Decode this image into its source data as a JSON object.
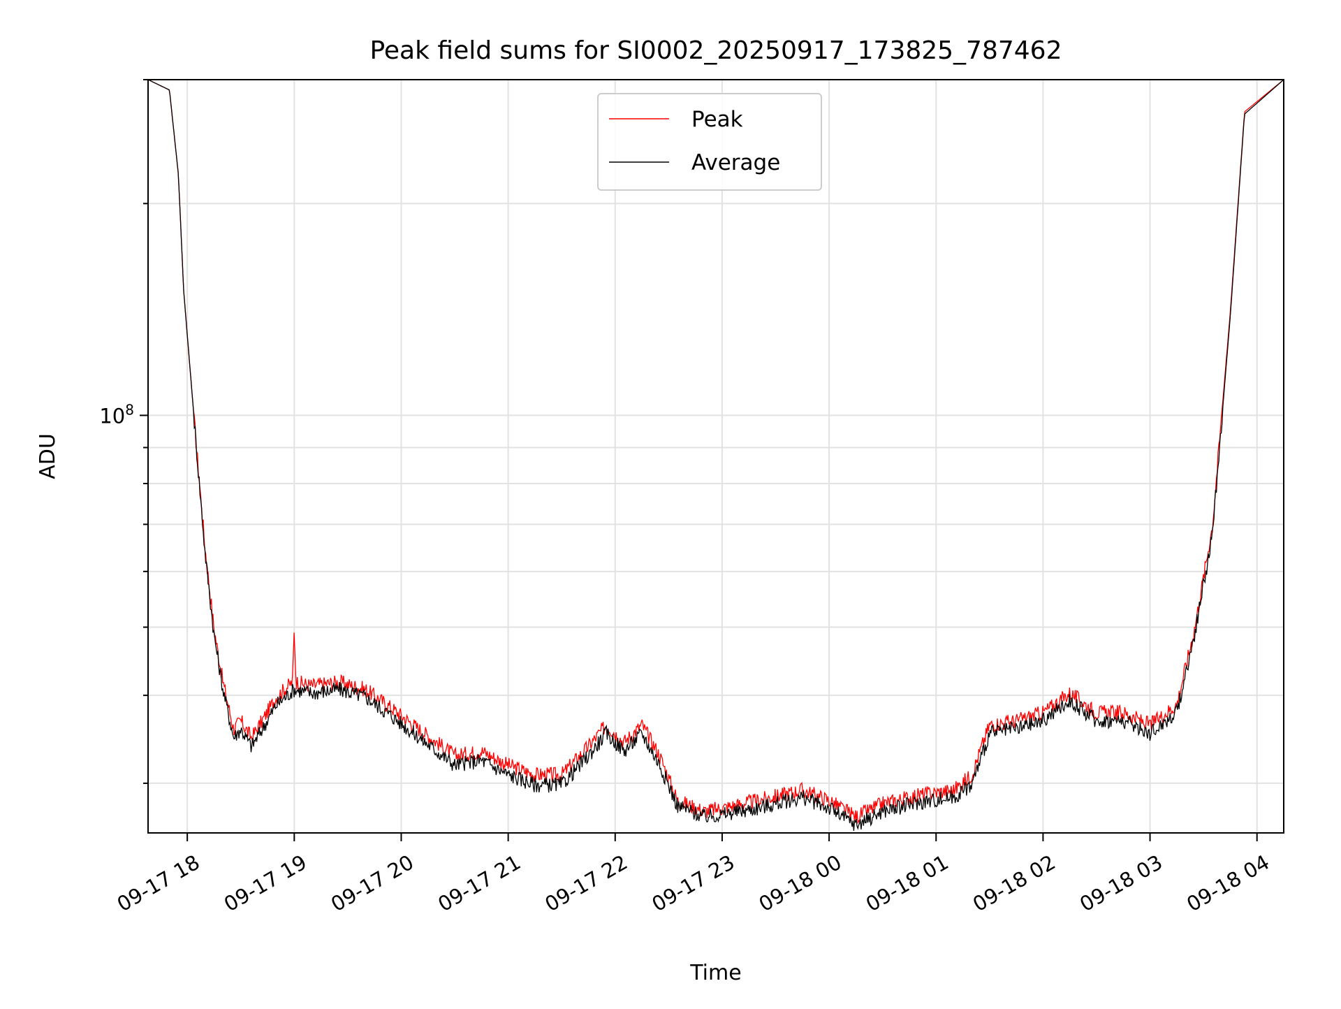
{
  "chart_data": {
    "type": "line",
    "title": "Peak field sums for SI0002_20250917_173825_787462",
    "xlabel": "Time",
    "ylabel": "ADU",
    "y_scale": "log",
    "grid": true,
    "legend_position": "upper center",
    "x_ticks": [
      "09-17 18",
      "09-17 19",
      "09-17 20",
      "09-17 21",
      "09-17 22",
      "09-17 23",
      "09-18 00",
      "09-18 01",
      "09-18 02",
      "09-18 03",
      "09-18 04"
    ],
    "x_tick_times": [
      "2025-09-17 18:00",
      "2025-09-17 19:00",
      "2025-09-17 20:00",
      "2025-09-17 21:00",
      "2025-09-17 22:00",
      "2025-09-17 23:00",
      "2025-09-18 00:00",
      "2025-09-18 01:00",
      "2025-09-18 02:00",
      "2025-09-18 03:00",
      "2025-09-18 04:00"
    ],
    "y_tick_major": "10^8",
    "xlim": [
      "2025-09-17 17:38",
      "2025-09-18 04:15"
    ],
    "ylim": [
      25500000,
      300000000
    ],
    "series": [
      {
        "name": "Peak",
        "color": "#ff0000",
        "points": [
          [
            "2025-09-17 17:38",
            300000000
          ],
          [
            "2025-09-17 17:50",
            290000000
          ],
          [
            "2025-09-17 17:55",
            220000000
          ],
          [
            "2025-09-17 17:58",
            150000000
          ],
          [
            "2025-09-17 18:03",
            105000000
          ],
          [
            "2025-09-17 18:10",
            65000000
          ],
          [
            "2025-09-17 18:15",
            50000000
          ],
          [
            "2025-09-17 18:20",
            42000000
          ],
          [
            "2025-09-17 18:26",
            36000000
          ],
          [
            "2025-09-17 18:30",
            37000000
          ],
          [
            "2025-09-17 18:36",
            35000000
          ],
          [
            "2025-09-17 18:42",
            37000000
          ],
          [
            "2025-09-17 18:50",
            40000000
          ],
          [
            "2025-09-17 18:59",
            42000000
          ],
          [
            "2025-09-17 19:00",
            50000000
          ],
          [
            "2025-09-17 19:01",
            42000000
          ],
          [
            "2025-09-17 19:10",
            41500000
          ],
          [
            "2025-09-17 19:25",
            42000000
          ],
          [
            "2025-09-17 19:40",
            41000000
          ],
          [
            "2025-09-17 19:55",
            38500000
          ],
          [
            "2025-09-17 20:10",
            36000000
          ],
          [
            "2025-09-17 20:30",
            33000000
          ],
          [
            "2025-09-17 20:45",
            33500000
          ],
          [
            "2025-09-17 21:00",
            32000000
          ],
          [
            "2025-09-17 21:15",
            31000000
          ],
          [
            "2025-09-17 21:30",
            31000000
          ],
          [
            "2025-09-17 21:45",
            34000000
          ],
          [
            "2025-09-17 21:55",
            36500000
          ],
          [
            "2025-09-17 22:05",
            34500000
          ],
          [
            "2025-09-17 22:15",
            36500000
          ],
          [
            "2025-09-17 22:25",
            33000000
          ],
          [
            "2025-09-17 22:35",
            28500000
          ],
          [
            "2025-09-17 22:50",
            27500000
          ],
          [
            "2025-09-17 23:00",
            27800000
          ],
          [
            "2025-09-17 23:20",
            28500000
          ],
          [
            "2025-09-17 23:45",
            29500000
          ],
          [
            "2025-09-18 00:00",
            28500000
          ],
          [
            "2025-09-18 00:15",
            27000000
          ],
          [
            "2025-09-18 00:30",
            28200000
          ],
          [
            "2025-09-18 00:50",
            29000000
          ],
          [
            "2025-09-18 01:10",
            29500000
          ],
          [
            "2025-09-18 01:20",
            31000000
          ],
          [
            "2025-09-18 01:30",
            36500000
          ],
          [
            "2025-09-18 01:45",
            37000000
          ],
          [
            "2025-09-18 02:00",
            38000000
          ],
          [
            "2025-09-18 02:15",
            40500000
          ],
          [
            "2025-09-18 02:30",
            38000000
          ],
          [
            "2025-09-18 02:45",
            38000000
          ],
          [
            "2025-09-18 03:00",
            36500000
          ],
          [
            "2025-09-18 03:15",
            39000000
          ],
          [
            "2025-09-18 03:25",
            50000000
          ],
          [
            "2025-09-18 03:35",
            70000000
          ],
          [
            "2025-09-18 03:45",
            140000000
          ],
          [
            "2025-09-18 03:53",
            270000000
          ],
          [
            "2025-09-18 04:15",
            300000000
          ]
        ]
      },
      {
        "name": "Average",
        "color": "#000000",
        "points": [
          [
            "2025-09-17 17:38",
            300000000
          ],
          [
            "2025-09-17 17:50",
            290000000
          ],
          [
            "2025-09-17 17:55",
            220000000
          ],
          [
            "2025-09-17 17:58",
            150000000
          ],
          [
            "2025-09-17 18:03",
            105000000
          ],
          [
            "2025-09-17 18:10",
            64000000
          ],
          [
            "2025-09-17 18:15",
            49000000
          ],
          [
            "2025-09-17 18:20",
            41000000
          ],
          [
            "2025-09-17 18:26",
            35000000
          ],
          [
            "2025-09-17 18:30",
            36000000
          ],
          [
            "2025-09-17 18:36",
            34000000
          ],
          [
            "2025-09-17 18:42",
            36000000
          ],
          [
            "2025-09-17 18:50",
            39000000
          ],
          [
            "2025-09-17 19:00",
            41000000
          ],
          [
            "2025-09-17 19:10",
            40500000
          ],
          [
            "2025-09-17 19:25",
            41000000
          ],
          [
            "2025-09-17 19:40",
            40000000
          ],
          [
            "2025-09-17 19:55",
            37500000
          ],
          [
            "2025-09-17 20:10",
            35000000
          ],
          [
            "2025-09-17 20:30",
            32000000
          ],
          [
            "2025-09-17 20:45",
            32500000
          ],
          [
            "2025-09-17 21:00",
            31000000
          ],
          [
            "2025-09-17 21:15",
            30000000
          ],
          [
            "2025-09-17 21:30",
            30000000
          ],
          [
            "2025-09-17 21:45",
            33000000
          ],
          [
            "2025-09-17 21:55",
            35500000
          ],
          [
            "2025-09-17 22:05",
            33500000
          ],
          [
            "2025-09-17 22:15",
            35500000
          ],
          [
            "2025-09-17 22:25",
            32000000
          ],
          [
            "2025-09-17 22:35",
            28000000
          ],
          [
            "2025-09-17 22:50",
            27000000
          ],
          [
            "2025-09-17 23:00",
            27200000
          ],
          [
            "2025-09-17 23:20",
            27800000
          ],
          [
            "2025-09-17 23:45",
            28800000
          ],
          [
            "2025-09-18 00:00",
            27800000
          ],
          [
            "2025-09-18 00:15",
            26300000
          ],
          [
            "2025-09-18 00:30",
            27500000
          ],
          [
            "2025-09-18 00:50",
            28300000
          ],
          [
            "2025-09-18 01:10",
            28800000
          ],
          [
            "2025-09-18 01:20",
            30000000
          ],
          [
            "2025-09-18 01:30",
            35500000
          ],
          [
            "2025-09-18 01:45",
            36000000
          ],
          [
            "2025-09-18 02:00",
            37000000
          ],
          [
            "2025-09-18 02:15",
            39500000
          ],
          [
            "2025-09-18 02:30",
            37000000
          ],
          [
            "2025-09-18 02:45",
            37000000
          ],
          [
            "2025-09-18 03:00",
            35500000
          ],
          [
            "2025-09-18 03:15",
            38000000
          ],
          [
            "2025-09-18 03:25",
            49000000
          ],
          [
            "2025-09-18 03:35",
            68000000
          ],
          [
            "2025-09-18 03:45",
            138000000
          ],
          [
            "2025-09-18 03:53",
            268000000
          ],
          [
            "2025-09-18 04:15",
            300000000
          ]
        ]
      }
    ]
  }
}
